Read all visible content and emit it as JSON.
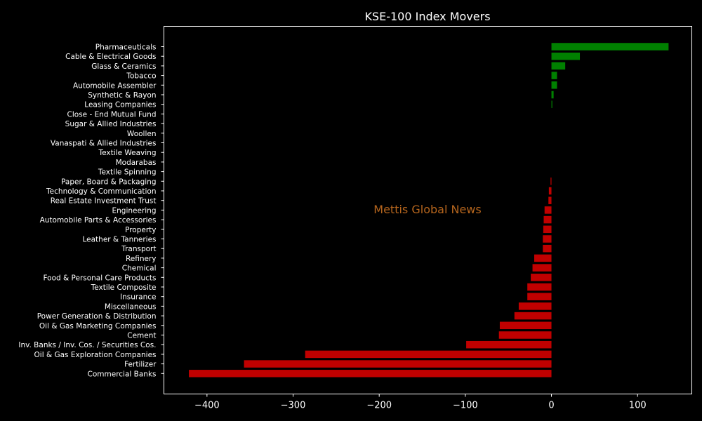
{
  "chart_data": {
    "type": "bar",
    "orientation": "horizontal",
    "title": "KSE-100 Index Movers",
    "xlabel": "",
    "ylabel": "",
    "xlim": [
      -450,
      163
    ],
    "xticks": [
      -400,
      -300,
      -200,
      -100,
      0,
      100
    ],
    "xtick_labels": [
      "−400",
      "−300",
      "−200",
      "−100",
      "0",
      "100"
    ],
    "grid": false,
    "background": "#000000",
    "colors": {
      "positive": "#008000",
      "negative": "#c00000",
      "frame": "#ffffff"
    },
    "categories": [
      "Pharmaceuticals",
      "Cable & Electrical Goods",
      "Glass & Ceramics",
      "Tobacco",
      "Automobile Assembler",
      "Synthetic & Rayon",
      "Leasing Companies",
      "Close - End Mutual Fund",
      "Sugar & Allied Industries",
      "Woollen",
      "Vanaspati & Allied Industries",
      "Textile Weaving",
      "Modarabas",
      "Textile Spinning",
      "Paper, Board & Packaging",
      "Technology & Communication",
      "Real Estate Investment Trust",
      "Engineering",
      "Automobile Parts & Accessories",
      "Property",
      "Leather & Tanneries",
      "Transport",
      "Refinery",
      "Chemical",
      "Food & Personal Care Products",
      "Textile Composite",
      "Insurance",
      "Miscellaneous",
      "Power Generation & Distribution",
      "Oil & Gas Marketing Companies",
      "Cement",
      "Inv. Banks / Inv. Cos. / Securities Cos.",
      "Oil & Gas Exploration Companies",
      "Fertilizer",
      "Commercial Banks"
    ],
    "values": [
      136,
      33,
      16,
      6.5,
      6.5,
      2.5,
      1,
      0,
      0,
      0,
      0,
      0,
      0,
      0,
      -1,
      -3,
      -3.5,
      -8,
      -9,
      -9.5,
      -10,
      -10,
      -20,
      -22,
      -24,
      -28,
      -28,
      -38,
      -43,
      -60,
      -61,
      -99,
      -286,
      -357,
      -421
    ]
  },
  "watermark": "Mettis Global News"
}
